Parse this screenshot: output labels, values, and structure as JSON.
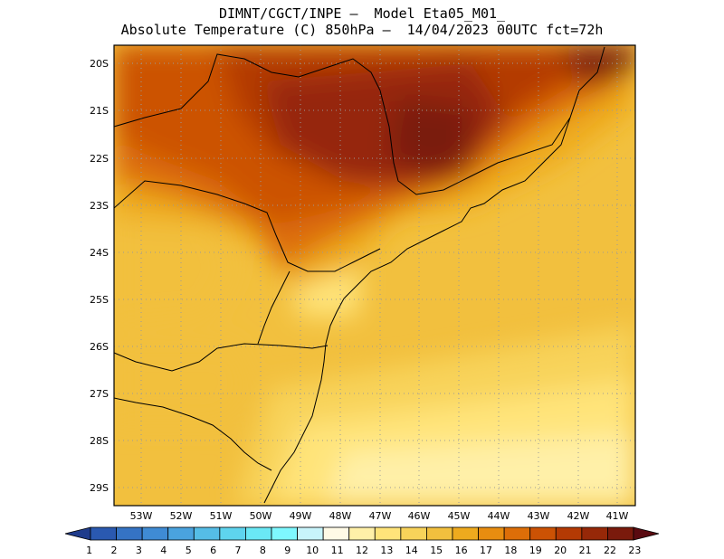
{
  "title": {
    "line1": "DIMNT/CGCT/INPE –  Model Eta05_M01_",
    "line2": "Absolute Temperature (C) 850hPa –  14/04/2023 00UTC fct=72h"
  },
  "map": {
    "region": "South-east Brazil",
    "lat_labels": [
      "20S",
      "21S",
      "22S",
      "23S",
      "24S",
      "25S",
      "26S",
      "27S",
      "28S",
      "29S"
    ],
    "lon_labels": [
      "53W",
      "52W",
      "51W",
      "50W",
      "49W",
      "48W",
      "47W",
      "46W",
      "45W",
      "44W",
      "43W",
      "42W",
      "41W"
    ],
    "grid": "dotted"
  },
  "colorbar": {
    "labels": [
      "1",
      "2",
      "3",
      "4",
      "5",
      "6",
      "7",
      "8",
      "9",
      "10",
      "11",
      "12",
      "13",
      "14",
      "15",
      "16",
      "17",
      "18",
      "19",
      "20",
      "21",
      "22",
      "23"
    ],
    "colors": [
      "#1f3c8c",
      "#2a59b0",
      "#3573c4",
      "#3f8bd4",
      "#4aa3df",
      "#55bde6",
      "#5ed4ee",
      "#6ae8f5",
      "#7ef8ff",
      "#c8f4fb",
      "#fffae6",
      "#fff0a8",
      "#ffe47a",
      "#f8d35a",
      "#f2c03e",
      "#eeaa1e",
      "#e88d10",
      "#dd6e08",
      "#cc5204",
      "#b43a04",
      "#962808",
      "#7a1a0c",
      "#5a0a10"
    ]
  }
}
